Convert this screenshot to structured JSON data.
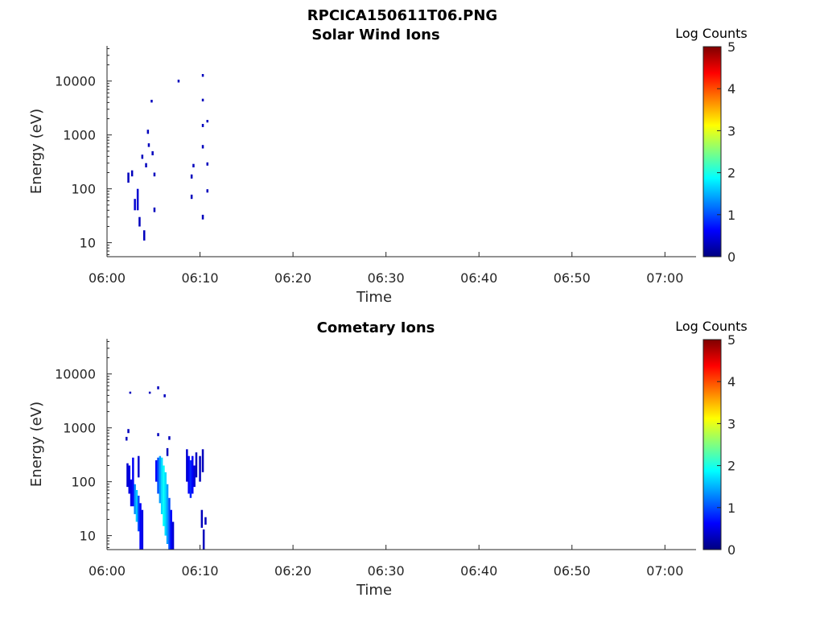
{
  "figure_title": "RPCICA150611T06.PNG",
  "colors": {
    "axis": "#262626",
    "background": "#ffffff"
  },
  "chart_data": [
    {
      "type": "heatmap",
      "title": "Solar Wind Ions",
      "xlabel": "Time",
      "ylabel": "Energy (eV)",
      "x_range": [
        "06:00",
        "07:03"
      ],
      "x_ticks": [
        "06:00",
        "06:10",
        "06:20",
        "06:30",
        "06:40",
        "06:50",
        "07:00"
      ],
      "y_scale": "log",
      "ylim": [
        5.5,
        45000
      ],
      "y_ticks": [
        {
          "value": 10,
          "label": "10"
        },
        {
          "value": 100,
          "label": "100"
        },
        {
          "value": 1000,
          "label": "1000"
        },
        {
          "value": 10000,
          "label": "10000"
        }
      ],
      "colorbar": {
        "label": "Log Counts",
        "min": 0,
        "max": 5,
        "ticks": [
          "0",
          "1",
          "2",
          "3",
          "4",
          "5"
        ],
        "colormap": "jet"
      },
      "cells": [
        {
          "t": "06:02.3",
          "e_low": 130,
          "e_high": 200,
          "level": 0.3
        },
        {
          "t": "06:02.7",
          "e_low": 170,
          "e_high": 220,
          "level": 0.3
        },
        {
          "t": "06:03.0",
          "e_low": 40,
          "e_high": 65,
          "level": 0.4
        },
        {
          "t": "06:03.3",
          "e_low": 40,
          "e_high": 100,
          "level": 0.4
        },
        {
          "t": "06:03.5",
          "e_low": 20,
          "e_high": 30,
          "level": 0.3
        },
        {
          "t": "06:03.8",
          "e_low": 360,
          "e_high": 430,
          "level": 0.3
        },
        {
          "t": "06:04.0",
          "e_low": 11,
          "e_high": 17,
          "level": 0.3
        },
        {
          "t": "06:04.2",
          "e_low": 250,
          "e_high": 300,
          "level": 0.3
        },
        {
          "t": "06:04.4",
          "e_low": 1050,
          "e_high": 1250,
          "level": 0.3
        },
        {
          "t": "06:04.5",
          "e_low": 600,
          "e_high": 700,
          "level": 0.3
        },
        {
          "t": "06:04.8",
          "e_low": 4000,
          "e_high": 4500,
          "level": 0.3
        },
        {
          "t": "06:04.9",
          "e_low": 420,
          "e_high": 500,
          "level": 0.3
        },
        {
          "t": "06:05.1",
          "e_low": 170,
          "e_high": 200,
          "level": 0.3
        },
        {
          "t": "06:05.1",
          "e_low": 37,
          "e_high": 45,
          "level": 0.3
        },
        {
          "t": "06:07.7",
          "e_low": 9400,
          "e_high": 10600,
          "level": 0.3
        },
        {
          "t": "06:09.1",
          "e_low": 65,
          "e_high": 78,
          "level": 0.3
        },
        {
          "t": "06:09.1",
          "e_low": 155,
          "e_high": 185,
          "level": 0.3
        },
        {
          "t": "06:09.3",
          "e_low": 250,
          "e_high": 290,
          "level": 0.3
        },
        {
          "t": "06:10.3",
          "e_low": 12000,
          "e_high": 13500,
          "level": 0.3
        },
        {
          "t": "06:10.3",
          "e_low": 4200,
          "e_high": 4700,
          "level": 0.3
        },
        {
          "t": "06:10.3",
          "e_low": 1400,
          "e_high": 1600,
          "level": 0.3
        },
        {
          "t": "06:10.3",
          "e_low": 560,
          "e_high": 650,
          "level": 0.3
        },
        {
          "t": "06:10.3",
          "e_low": 27,
          "e_high": 33,
          "level": 0.3
        },
        {
          "t": "06:10.8",
          "e_low": 1700,
          "e_high": 1900,
          "level": 0.3
        },
        {
          "t": "06:10.8",
          "e_low": 270,
          "e_high": 310,
          "level": 0.3
        },
        {
          "t": "06:10.8",
          "e_low": 85,
          "e_high": 98,
          "level": 0.3
        }
      ]
    },
    {
      "type": "heatmap",
      "title": "Cometary Ions",
      "xlabel": "Time",
      "ylabel": "Energy (eV)",
      "x_range": [
        "06:00",
        "07:03"
      ],
      "x_ticks": [
        "06:00",
        "06:10",
        "06:20",
        "06:30",
        "06:40",
        "06:50",
        "07:00"
      ],
      "y_scale": "log",
      "ylim": [
        5.5,
        45000
      ],
      "y_ticks": [
        {
          "value": 10,
          "label": "10"
        },
        {
          "value": 100,
          "label": "100"
        },
        {
          "value": 1000,
          "label": "1000"
        },
        {
          "value": 10000,
          "label": "10000"
        }
      ],
      "colorbar": {
        "label": "Log Counts",
        "min": 0,
        "max": 5,
        "ticks": [
          "0",
          "1",
          "2",
          "3",
          "4",
          "5"
        ],
        "colormap": "jet"
      },
      "cells": [
        {
          "t": "06:02.5",
          "e_low": 4300,
          "e_high": 4700,
          "level": 0.3
        },
        {
          "t": "06:04.6",
          "e_low": 4300,
          "e_high": 4700,
          "level": 0.3
        },
        {
          "t": "06:05.5",
          "e_low": 5200,
          "e_high": 5900,
          "level": 0.3
        },
        {
          "t": "06:06.2",
          "e_low": 3700,
          "e_high": 4200,
          "level": 0.3
        },
        {
          "t": "06:02.3",
          "e_low": 800,
          "e_high": 950,
          "level": 0.3
        },
        {
          "t": "06:02.1",
          "e_low": 580,
          "e_high": 680,
          "level": 0.3
        },
        {
          "t": "06:05.5",
          "e_low": 700,
          "e_high": 800,
          "level": 0.3
        },
        {
          "t": "06:06.7",
          "e_low": 600,
          "e_high": 700,
          "level": 0.3
        },
        {
          "t": "06:02.2",
          "e_low": 80,
          "e_high": 220,
          "level": 0.4
        },
        {
          "t": "06:02.4",
          "e_low": 60,
          "e_high": 200,
          "level": 0.5
        },
        {
          "t": "06:02.6",
          "e_low": 35,
          "e_high": 110,
          "level": 0.5
        },
        {
          "t": "06:02.8",
          "e_low": 35,
          "e_high": 280,
          "level": 0.6
        },
        {
          "t": "06:03.0",
          "e_low": 25,
          "e_high": 90,
          "level": 1.3
        },
        {
          "t": "06:03.2",
          "e_low": 18,
          "e_high": 70,
          "level": 1.6
        },
        {
          "t": "06:03.4",
          "e_low": 12,
          "e_high": 55,
          "level": 1.0
        },
        {
          "t": "06:03.6",
          "e_low": 5.5,
          "e_high": 40,
          "level": 0.6
        },
        {
          "t": "06:03.8",
          "e_low": 5.5,
          "e_high": 30,
          "level": 0.5
        },
        {
          "t": "06:03.4",
          "e_low": 120,
          "e_high": 300,
          "level": 0.4
        },
        {
          "t": "06:05.3",
          "e_low": 100,
          "e_high": 250,
          "level": 0.6
        },
        {
          "t": "06:05.5",
          "e_low": 60,
          "e_high": 280,
          "level": 1.0
        },
        {
          "t": "06:05.7",
          "e_low": 40,
          "e_high": 300,
          "level": 1.4
        },
        {
          "t": "06:05.9",
          "e_low": 25,
          "e_high": 280,
          "level": 1.7
        },
        {
          "t": "06:06.1",
          "e_low": 15,
          "e_high": 200,
          "level": 1.9
        },
        {
          "t": "06:06.3",
          "e_low": 10,
          "e_high": 150,
          "level": 1.7
        },
        {
          "t": "06:06.5",
          "e_low": 7,
          "e_high": 90,
          "level": 1.4
        },
        {
          "t": "06:06.7",
          "e_low": 5.5,
          "e_high": 50,
          "level": 1.0
        },
        {
          "t": "06:06.9",
          "e_low": 5.5,
          "e_high": 30,
          "level": 0.6
        },
        {
          "t": "06:07.1",
          "e_low": 5.5,
          "e_high": 18,
          "level": 0.4
        },
        {
          "t": "06:06.5",
          "e_low": 300,
          "e_high": 420,
          "level": 0.3
        },
        {
          "t": "06:08.6",
          "e_low": 100,
          "e_high": 400,
          "level": 0.4
        },
        {
          "t": "06:08.8",
          "e_low": 60,
          "e_high": 300,
          "level": 0.6
        },
        {
          "t": "06:09.0",
          "e_low": 50,
          "e_high": 250,
          "level": 0.8
        },
        {
          "t": "06:09.2",
          "e_low": 60,
          "e_high": 300,
          "level": 0.6
        },
        {
          "t": "06:09.4",
          "e_low": 80,
          "e_high": 200,
          "level": 0.4
        },
        {
          "t": "06:09.6",
          "e_low": 120,
          "e_high": 350,
          "level": 0.3
        },
        {
          "t": "06:10.0",
          "e_low": 100,
          "e_high": 300,
          "level": 0.3
        },
        {
          "t": "06:10.3",
          "e_low": 150,
          "e_high": 400,
          "level": 0.3
        },
        {
          "t": "06:10.2",
          "e_low": 14,
          "e_high": 30,
          "level": 0.3
        },
        {
          "t": "06:10.4",
          "e_low": 5.5,
          "e_high": 13,
          "level": 0.3
        },
        {
          "t": "06:10.6",
          "e_low": 16,
          "e_high": 22,
          "level": 0.3
        }
      ]
    }
  ]
}
